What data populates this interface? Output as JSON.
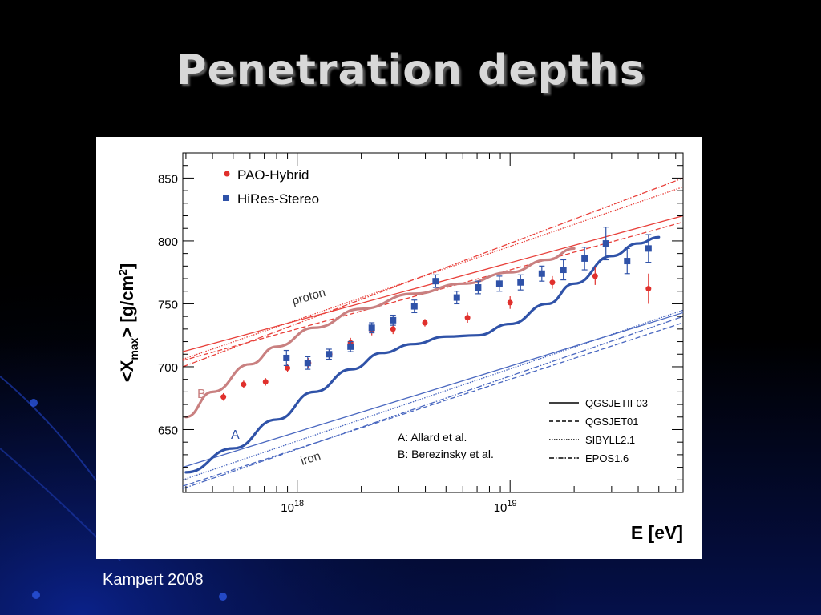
{
  "slide": {
    "title": "Penetration depths",
    "credit": "Kampert 2008"
  },
  "colors": {
    "pao": "#e0302c",
    "hires": "#2f52a8",
    "proton": "#e8403a",
    "iron": "#4a68c0",
    "model_b": "#c98080",
    "model_a": "#2f52a8"
  },
  "chart_data": {
    "type": "scatter",
    "xlabel": "E [eV]",
    "ylabel": "<X_max> [g/cm^2]",
    "x_scale": "log",
    "xlim_eV": [
      2.9e+17,
      6.5e+19
    ],
    "ylim": [
      600,
      870
    ],
    "y_ticks": [
      650,
      700,
      750,
      800,
      850
    ],
    "x_tick_labels": [
      {
        "label": "10^18",
        "base": "10",
        "exp": "18",
        "value": 1e+18
      },
      {
        "label": "10^19",
        "base": "10",
        "exp": "19",
        "value": 1e+19
      }
    ],
    "legend_markers": [
      {
        "name": "PAO-Hybrid",
        "marker": "circle",
        "color": "#e0302c"
      },
      {
        "name": "HiRes-Stereo",
        "marker": "square",
        "color": "#2f52a8"
      }
    ],
    "legend_lines": [
      {
        "name": "QGSJETII-03",
        "dash": "solid"
      },
      {
        "name": "QGSJET01",
        "dash": "dashed"
      },
      {
        "name": "SIBYLL2.1",
        "dash": "dotted"
      },
      {
        "name": "EPOS1.6",
        "dash": "dash-dot"
      }
    ],
    "annotations": {
      "model_a_label": "A: Allard et al.",
      "model_b_label": "B: Berezinsky et al.",
      "curve_a": "A",
      "curve_b": "B",
      "proton": "proton",
      "iron": "iron"
    },
    "series": [
      {
        "name": "PAO-Hybrid",
        "marker": "circle",
        "points": [
          {
            "x": 4.5e+17,
            "y": 676,
            "err": 3
          },
          {
            "x": 5.6e+17,
            "y": 686,
            "err": 3
          },
          {
            "x": 7.1e+17,
            "y": 688,
            "err": 3
          },
          {
            "x": 9e+17,
            "y": 699,
            "err": 3
          },
          {
            "x": 1.13e+18,
            "y": 703,
            "err": 4
          },
          {
            "x": 1.42e+18,
            "y": 710,
            "err": 4
          },
          {
            "x": 1.78e+18,
            "y": 719,
            "err": 4
          },
          {
            "x": 2.24e+18,
            "y": 729,
            "err": 4
          },
          {
            "x": 2.82e+18,
            "y": 730,
            "err": 4
          },
          {
            "x": 3.98e+18,
            "y": 735,
            "err": 3
          },
          {
            "x": 6.31e+18,
            "y": 739,
            "err": 4
          },
          {
            "x": 1e+19,
            "y": 751,
            "err": 5
          },
          {
            "x": 1.58e+19,
            "y": 767,
            "err": 5
          },
          {
            "x": 2.51e+19,
            "y": 772,
            "err": 7
          },
          {
            "x": 4.47e+19,
            "y": 762,
            "err": 12
          }
        ]
      },
      {
        "name": "HiRes-Stereo",
        "marker": "square",
        "points": [
          {
            "x": 8.9e+17,
            "y": 707,
            "err": 6
          },
          {
            "x": 1.12e+18,
            "y": 703,
            "err": 5
          },
          {
            "x": 1.41e+18,
            "y": 710,
            "err": 4
          },
          {
            "x": 1.78e+18,
            "y": 716,
            "err": 4
          },
          {
            "x": 2.24e+18,
            "y": 731,
            "err": 4
          },
          {
            "x": 2.82e+18,
            "y": 737,
            "err": 4
          },
          {
            "x": 3.55e+18,
            "y": 748,
            "err": 5
          },
          {
            "x": 4.47e+18,
            "y": 768,
            "err": 5
          },
          {
            "x": 5.62e+18,
            "y": 755,
            "err": 5
          },
          {
            "x": 7.08e+18,
            "y": 763,
            "err": 5
          },
          {
            "x": 8.91e+18,
            "y": 766,
            "err": 6
          },
          {
            "x": 1.12e+19,
            "y": 767,
            "err": 6
          },
          {
            "x": 1.41e+19,
            "y": 774,
            "err": 6
          },
          {
            "x": 1.78e+19,
            "y": 777,
            "err": 8
          },
          {
            "x": 2.24e+19,
            "y": 786,
            "err": 9
          },
          {
            "x": 2.82e+19,
            "y": 798,
            "err": 13
          },
          {
            "x": 3.55e+19,
            "y": 784,
            "err": 10
          },
          {
            "x": 4.47e+19,
            "y": 794,
            "err": 11
          }
        ]
      }
    ],
    "model_curves": [
      {
        "name": "B",
        "color": "#c98080",
        "x": [
          3e+17,
          4e+17,
          6e+17,
          8e+17,
          1.2e+18,
          2e+18,
          3.5e+18,
          6e+18,
          1e+19,
          1.5e+19,
          2e+19
        ],
        "y": [
          660,
          680,
          702,
          716,
          731,
          746,
          758,
          766,
          775,
          785,
          794
        ]
      },
      {
        "name": "A",
        "color": "#2f52a8",
        "x": [
          3e+17,
          5e+17,
          8e+17,
          1.2e+18,
          1.8e+18,
          2.5e+18,
          3.5e+18,
          5e+18,
          7e+18,
          1e+19,
          1.5e+19,
          2e+19,
          3e+19,
          4e+19,
          5e+19
        ],
        "y": [
          616,
          635,
          658,
          680,
          698,
          711,
          718,
          724,
          725,
          734,
          750,
          766,
          788,
          798,
          803
        ]
      }
    ],
    "reference_lines": [
      {
        "group": "proton",
        "dash": "solid",
        "x": [
          2.9e+17,
          6.5e+19
        ],
        "y": [
          712,
          820
        ]
      },
      {
        "group": "proton",
        "dash": "dashed",
        "x": [
          2.9e+17,
          6.5e+19
        ],
        "y": [
          705,
          815
        ]
      },
      {
        "group": "proton",
        "dash": "dotted",
        "x": [
          2.9e+17,
          6.5e+19
        ],
        "y": [
          706,
          843
        ]
      },
      {
        "group": "proton",
        "dash": "dash-dot",
        "x": [
          2.9e+17,
          6.5e+19
        ],
        "y": [
          700,
          850
        ]
      },
      {
        "group": "iron",
        "dash": "solid",
        "x": [
          2.9e+17,
          6.5e+19
        ],
        "y": [
          620,
          743
        ]
      },
      {
        "group": "iron",
        "dash": "dashed",
        "x": [
          2.9e+17,
          6.5e+19
        ],
        "y": [
          605,
          735
        ]
      },
      {
        "group": "iron",
        "dash": "dotted",
        "x": [
          2.9e+17,
          6.5e+19
        ],
        "y": [
          610,
          745
        ]
      },
      {
        "group": "iron",
        "dash": "dash-dot",
        "x": [
          2.9e+17,
          6.5e+19
        ],
        "y": [
          603,
          740
        ]
      }
    ]
  }
}
